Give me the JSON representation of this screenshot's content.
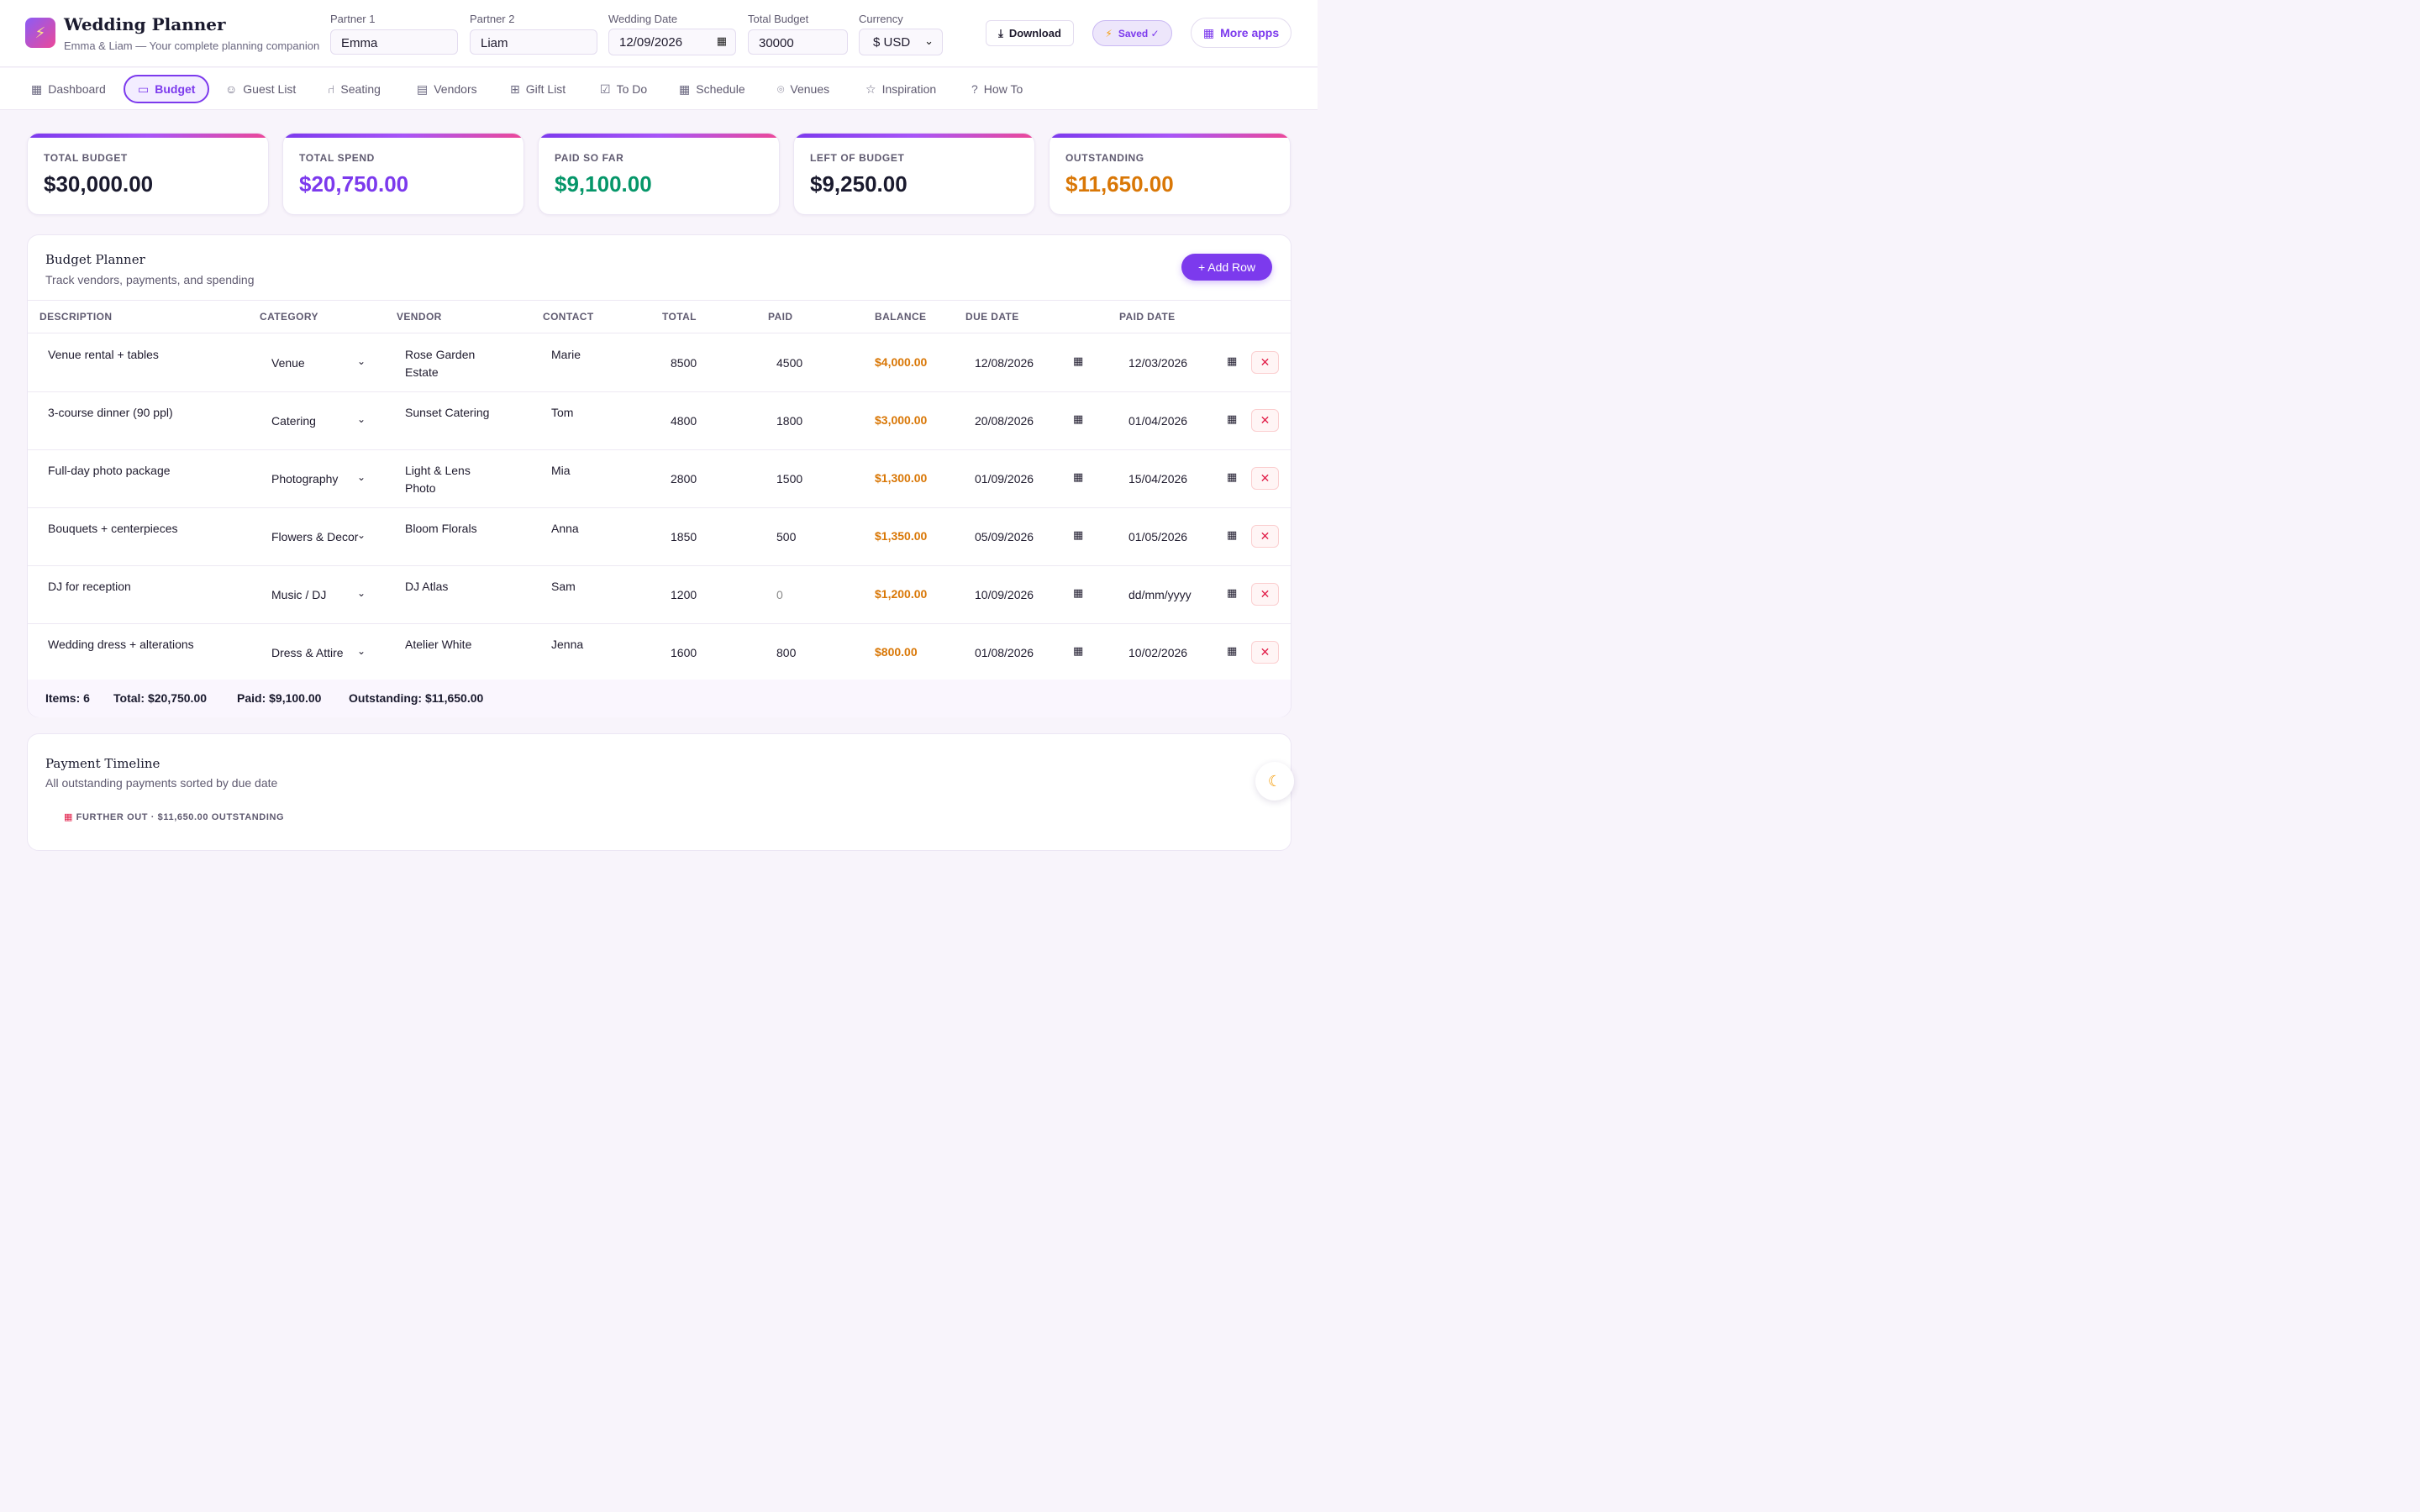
{
  "app": {
    "title": "Wedding Planner",
    "subtitle": "Emma & Liam — Your complete planning companion",
    "logo_icon": "lightning-icon"
  },
  "fields": {
    "partner1_label": "Partner 1",
    "partner1_value": "Emma",
    "partner2_label": "Partner 2",
    "partner2_value": "Liam",
    "date_label": "Wedding Date",
    "date_value": "12/09/2026",
    "budget_label": "Total Budget",
    "budget_value": "30000",
    "currency_label": "Currency",
    "currency_value": "$ USD"
  },
  "header_buttons": {
    "download": "Download",
    "saved": "Saved ✓",
    "more_apps": "More apps"
  },
  "tabs": [
    {
      "label": "Dashboard",
      "icon": "grid-icon"
    },
    {
      "label": "Budget",
      "icon": "card-icon",
      "active": true
    },
    {
      "label": "Guest List",
      "icon": "users-icon"
    },
    {
      "label": "Seating",
      "icon": "chair-icon"
    },
    {
      "label": "Vendors",
      "icon": "document-icon"
    },
    {
      "label": "Gift List",
      "icon": "gift-icon"
    },
    {
      "label": "To Do",
      "icon": "checkbox-icon"
    },
    {
      "label": "Schedule",
      "icon": "calendar-icon"
    },
    {
      "label": "Venues",
      "icon": "map-pin-icon"
    },
    {
      "label": "Inspiration",
      "icon": "star-icon"
    },
    {
      "label": "How To",
      "icon": "help-icon"
    }
  ],
  "stats": [
    {
      "label": "TOTAL BUDGET",
      "value": "$30,000.00",
      "color": "#1a1a2e"
    },
    {
      "label": "TOTAL SPEND",
      "value": "$20,750.00",
      "color": "#7c3aed"
    },
    {
      "label": "PAID SO FAR",
      "value": "$9,100.00",
      "color": "#059669"
    },
    {
      "label": "LEFT OF BUDGET",
      "value": "$9,250.00",
      "color": "#1a1a2e"
    },
    {
      "label": "OUTSTANDING",
      "value": "$11,650.00",
      "color": "#d97706"
    }
  ],
  "budget": {
    "title": "Budget Planner",
    "subtitle": "Track vendors, payments, and spending",
    "add_row": "+ Add Row",
    "columns": [
      "DESCRIPTION",
      "CATEGORY",
      "VENDOR",
      "CONTACT",
      "TOTAL",
      "PAID",
      "BALANCE",
      "DUE DATE",
      "PAID DATE"
    ],
    "rows": [
      {
        "description": "Venue rental + tables",
        "category": "Venue",
        "vendor_line1": "Rose Garden",
        "vendor_line2": "Estate",
        "contact": "Marie",
        "total": "8500",
        "paid": "4500",
        "balance": "$4,000.00",
        "due_date": "12/08/2026",
        "paid_date": "12/03/2026"
      },
      {
        "description": "3-course dinner (90 ppl)",
        "category": "Catering",
        "vendor_line1": "Sunset Catering",
        "vendor_line2": "",
        "contact": "Tom",
        "total": "4800",
        "paid": "1800",
        "balance": "$3,000.00",
        "due_date": "20/08/2026",
        "paid_date": "01/04/2026"
      },
      {
        "description": "Full-day photo package",
        "category": "Photography",
        "vendor_line1": "Light & Lens",
        "vendor_line2": "Photo",
        "contact": "Mia",
        "total": "2800",
        "paid": "1500",
        "balance": "$1,300.00",
        "due_date": "01/09/2026",
        "paid_date": "15/04/2026"
      },
      {
        "description": "Bouquets + centerpieces",
        "category": "Flowers & Decor",
        "vendor_line1": "Bloom Florals",
        "vendor_line2": "",
        "contact": "Anna",
        "total": "1850",
        "paid": "500",
        "balance": "$1,350.00",
        "due_date": "05/09/2026",
        "paid_date": "01/05/2026"
      },
      {
        "description": "DJ for reception",
        "category": "Music / DJ",
        "vendor_line1": "DJ Atlas",
        "vendor_line2": "",
        "contact": "Sam",
        "total": "1200",
        "paid": "0",
        "balance": "$1,200.00",
        "due_date": "10/09/2026",
        "paid_date": "dd/mm/yyyy"
      },
      {
        "description": "Wedding dress + alterations",
        "category": "Dress & Attire",
        "vendor_line1": "Atelier White",
        "vendor_line2": "",
        "contact": "Jenna",
        "total": "1600",
        "paid": "800",
        "balance": "$800.00",
        "due_date": "01/08/2026",
        "paid_date": "10/02/2026"
      }
    ],
    "footer": {
      "items": "Items: 6",
      "total": "Total: $20,750.00",
      "paid": "Paid: $9,100.00",
      "outstanding": "Outstanding: $11,650.00"
    }
  },
  "timeline": {
    "title": "Payment Timeline",
    "subtitle": "All outstanding payments sorted by due date",
    "group_label": "FURTHER OUT · $11,650.00 OUTSTANDING",
    "group_icon": "calendar-icon"
  },
  "theme_toggle_icon": "moon-icon"
}
